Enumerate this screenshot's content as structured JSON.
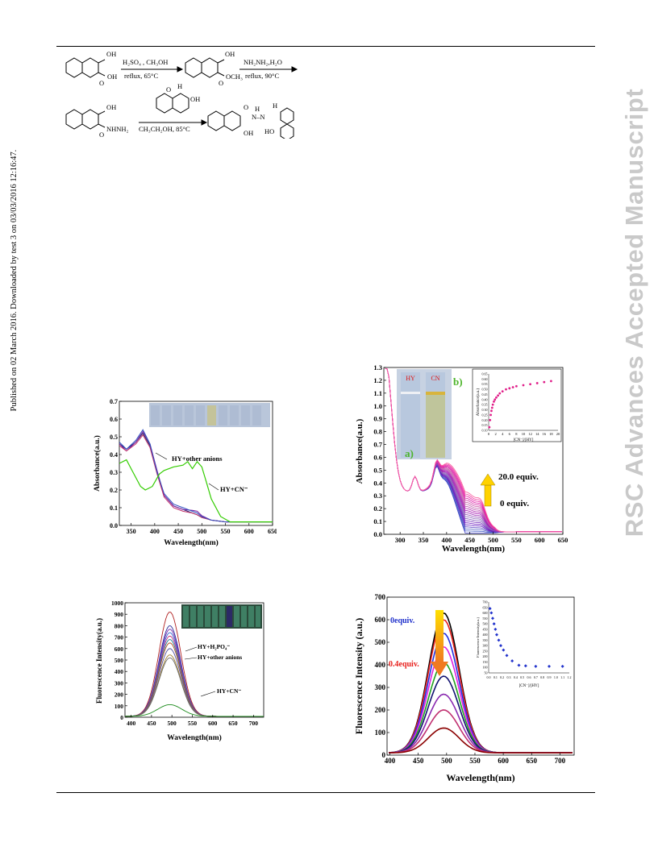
{
  "sidebar_left": "Published on 02 March 2016. Downloaded by test 3 on 03/03/2016 12:16:47.",
  "sidebar_right": "RSC Advances Accepted Manuscript",
  "scheme": {
    "row1": {
      "oh_a": "OH",
      "oh_acid": "OH",
      "reagent_top": "H₂SO₄ , CH₃OH",
      "reagent_bottom": "reflux, 65°C",
      "oh_b": "OH",
      "ester": "OCH₃",
      "reagent2_top": "NH₂NH₂,H₂O",
      "reagent2_bottom": "reflux, 90°C",
      "o_a": "O",
      "o_b": "O"
    },
    "row2": {
      "oh_c": "OH",
      "hydrazide": "NHNH₂",
      "o_c": "O",
      "ald_h": "H",
      "ald_o": "O",
      "ald_oh": "OH",
      "reagent3": "CH₃CH₂OH, 85°C",
      "prod_o": "O",
      "prod_h": "H",
      "prod_n": "N–N",
      "prod_nh": "H",
      "prod_oh": "OH",
      "prod_ho": "HO"
    }
  },
  "colors": {
    "green": "#33cc00",
    "violet": "#7a1fa2",
    "pink": "#e0208a",
    "blue_star": "#2233cc",
    "dark_red": "#8b0000",
    "arrow_yellow": "#ffd200",
    "arrow_orange": "#f08020"
  },
  "chart_data": [
    {
      "id": "abs_anions",
      "type": "line",
      "xlabel": "Wavelength(nm)",
      "ylabel": "Absorbance(a.u.)",
      "xlim": [
        325,
        650
      ],
      "ylim": [
        0.0,
        0.7
      ],
      "xticks": [
        "350",
        "400",
        "450",
        "500",
        "550",
        "600",
        "650"
      ],
      "yticks": [
        "0.0",
        "0.1",
        "0.2",
        "0.3",
        "0.4",
        "0.5",
        "0.6",
        "0.7"
      ],
      "annotations": [
        "HY+other anions",
        "HY+CN⁻"
      ],
      "series": [
        {
          "x": [
            325,
            340,
            360,
            375,
            390,
            405,
            420,
            440,
            460,
            480,
            490,
            500,
            520,
            550,
            600,
            650
          ],
          "y": [
            0.46,
            0.43,
            0.47,
            0.52,
            0.45,
            0.3,
            0.17,
            0.11,
            0.09,
            0.07,
            0.06,
            0.045,
            0.03,
            0.02,
            0.02,
            0.02
          ]
        },
        {
          "x": [
            325,
            340,
            360,
            375,
            390,
            405,
            420,
            440,
            460,
            480,
            490,
            500,
            520,
            550,
            600,
            650
          ],
          "y": [
            0.46,
            0.42,
            0.47,
            0.53,
            0.46,
            0.31,
            0.17,
            0.11,
            0.09,
            0.085,
            0.08,
            0.055,
            0.03,
            0.02,
            0.02,
            0.02
          ]
        },
        {
          "x": [
            325,
            340,
            360,
            375,
            390,
            405,
            420,
            440,
            460,
            480,
            490,
            500,
            520,
            550,
            600,
            650
          ],
          "y": [
            0.45,
            0.42,
            0.46,
            0.51,
            0.44,
            0.29,
            0.16,
            0.1,
            0.08,
            0.07,
            0.06,
            0.045,
            0.03,
            0.02,
            0.02,
            0.02
          ]
        },
        {
          "x": [
            325,
            340,
            360,
            375,
            390,
            405,
            420,
            440,
            460,
            480,
            490,
            500,
            520,
            550,
            600,
            650
          ],
          "y": [
            0.47,
            0.43,
            0.48,
            0.54,
            0.46,
            0.3,
            0.18,
            0.12,
            0.1,
            0.08,
            0.07,
            0.05,
            0.03,
            0.02,
            0.02,
            0.02
          ]
        },
        {
          "x": [
            325,
            340,
            350,
            370,
            380,
            395,
            410,
            420,
            440,
            460,
            470,
            480,
            490,
            500,
            510,
            520,
            540,
            560,
            600,
            650
          ],
          "y": [
            0.35,
            0.37,
            0.32,
            0.22,
            0.2,
            0.22,
            0.29,
            0.31,
            0.33,
            0.34,
            0.36,
            0.32,
            0.36,
            0.33,
            0.24,
            0.15,
            0.05,
            0.02,
            0.02,
            0.02
          ]
        }
      ]
    },
    {
      "id": "abs_titration",
      "type": "line",
      "xlabel": "Wavelength(nm)",
      "ylabel": "Absorbance(a.u.)",
      "xlim": [
        265,
        650
      ],
      "ylim": [
        0.0,
        1.3
      ],
      "xticks": [
        "300",
        "350",
        "400",
        "450",
        "500",
        "550",
        "600",
        "650"
      ],
      "yticks": [
        "0.0",
        "0.1",
        "0.2",
        "0.3",
        "0.4",
        "0.5",
        "0.6",
        "0.7",
        "0.8",
        "0.9",
        "1.0",
        "1.1",
        "1.2",
        "1.3"
      ],
      "annotations": [
        "20.0 equiv.",
        "0 equiv.",
        "a)",
        "b)",
        "HY",
        "CN"
      ],
      "equiv_range": [
        0,
        20
      ],
      "inset": {
        "xlabel": "[CN⁻]/[HY]",
        "ylabel": "Absorbance(a.u.)",
        "xticks": [
          "0",
          "2",
          "4",
          "6",
          "8",
          "10",
          "12",
          "14",
          "16",
          "18",
          "20"
        ],
        "yticks": [
          "0.10",
          "0.15",
          "0.20",
          "0.25",
          "0.30",
          "0.35",
          "0.40",
          "0.45",
          "0.50",
          "0.55",
          "0.60",
          "0.65"
        ],
        "x": [
          0.2,
          0.4,
          0.6,
          0.8,
          1.0,
          1.2,
          1.5,
          1.8,
          2.2,
          2.7,
          3.2,
          4.0,
          5,
          6,
          7,
          8,
          10,
          12,
          14,
          16,
          18
        ],
        "y": [
          0.13,
          0.2,
          0.25,
          0.29,
          0.32,
          0.35,
          0.38,
          0.4,
          0.42,
          0.44,
          0.46,
          0.48,
          0.5,
          0.51,
          0.52,
          0.53,
          0.54,
          0.55,
          0.56,
          0.57,
          0.58
        ]
      }
    },
    {
      "id": "fl_anions",
      "type": "line",
      "xlabel": "Wavelength(nm)",
      "ylabel": "Fluorescence Intensity(a.u.)",
      "xlim": [
        385,
        725
      ],
      "ylim": [
        0,
        1000
      ],
      "xticks": [
        "400",
        "450",
        "500",
        "550",
        "600",
        "650",
        "700"
      ],
      "yticks": [
        "0",
        "100",
        "200",
        "300",
        "400",
        "500",
        "600",
        "700",
        "800",
        "900",
        "1000"
      ],
      "annotations": [
        "HY+H₂PO₄⁻",
        "HY+other anions",
        "HY+CN⁻"
      ],
      "peak_x": 495,
      "peaks": [
        920,
        800,
        770,
        740,
        710,
        680,
        650,
        600,
        545,
        520,
        110
      ]
    },
    {
      "id": "fl_titration",
      "type": "line",
      "xlabel": "Wavelength(nm)",
      "ylabel": "Fluorescence Intensity (a.u.)",
      "xlim": [
        395,
        725
      ],
      "ylim": [
        0,
        700
      ],
      "xticks": [
        "400",
        "450",
        "500",
        "550",
        "600",
        "650",
        "700"
      ],
      "yticks": [
        "0",
        "100",
        "200",
        "300",
        "400",
        "500",
        "600",
        "700"
      ],
      "annotations": [
        "0equiv.",
        "0.4equiv."
      ],
      "peak_x": 495,
      "peaks": [
        630,
        600,
        540,
        480,
        410,
        350,
        270,
        200,
        120
      ],
      "inset": {
        "xlabel": "[CN⁻]/[HY]",
        "ylabel": "Fluorescence Intensity(a.u.)",
        "xticks": [
          "0.0",
          "0.1",
          "0.2",
          "0.3",
          "0.4",
          "0.5",
          "0.6",
          "0.7",
          "0.8",
          "0.9",
          "1.0",
          "1.1",
          "1.2"
        ],
        "yticks": [
          "50",
          "100",
          "150",
          "200",
          "250",
          "300",
          "350",
          "400",
          "450",
          "500",
          "550",
          "600",
          "650",
          "700"
        ],
        "x": [
          0.02,
          0.04,
          0.06,
          0.08,
          0.1,
          0.12,
          0.15,
          0.18,
          0.22,
          0.27,
          0.35,
          0.45,
          0.55,
          0.7,
          0.9,
          1.1
        ],
        "y": [
          640,
          600,
          550,
          500,
          450,
          400,
          350,
          300,
          260,
          210,
          160,
          120,
          115,
          110,
          110,
          110
        ]
      }
    }
  ]
}
